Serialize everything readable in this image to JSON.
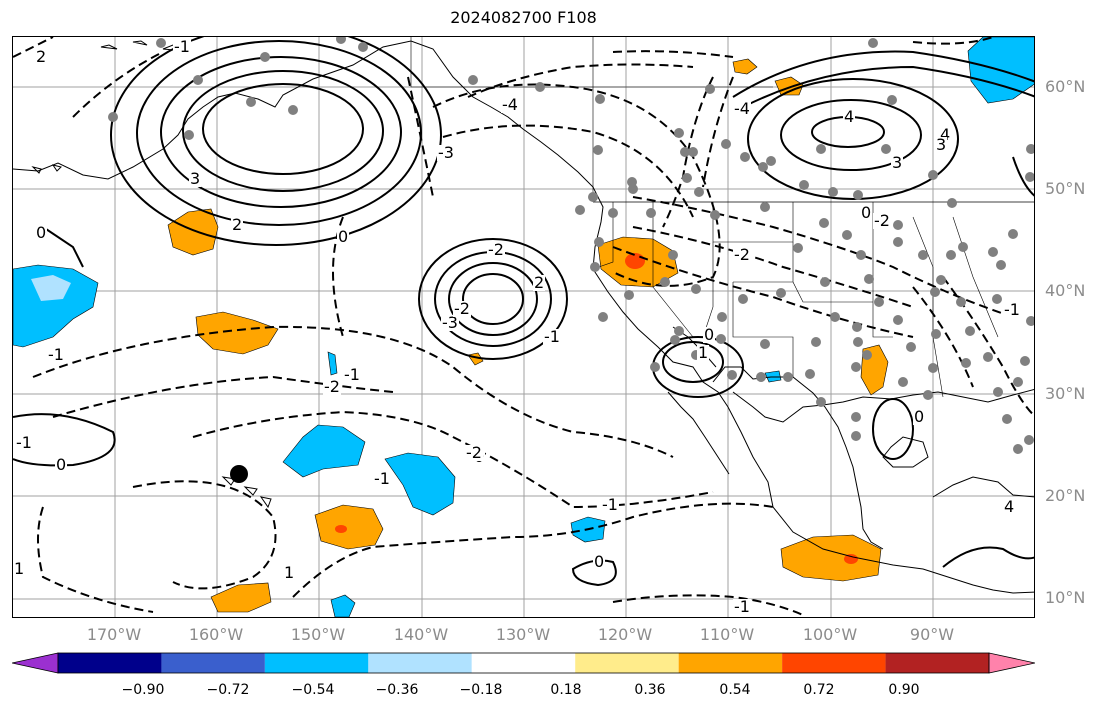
{
  "title": "2024082700 F108",
  "lat_labels": [
    "60°N",
    "50°N",
    "40°N",
    "30°N",
    "20°N",
    "10°N"
  ],
  "lon_labels": [
    "170°W",
    "160°W",
    "150°W",
    "140°W",
    "130°W",
    "120°W",
    "110°W",
    "100°W",
    "90°W"
  ],
  "contour_labels": [
    "2",
    "-1",
    "3",
    "2",
    "0",
    "-1",
    "0",
    "-3",
    "-4",
    "-3",
    "-2",
    "2",
    "-4",
    "4",
    "3",
    "-2",
    "-1",
    "-1",
    "-2",
    "-1",
    "0",
    "-1",
    "1",
    "0",
    "1",
    "-1",
    "-2",
    "0",
    "1",
    "0",
    "-2",
    "0",
    "-1",
    "-1",
    "-2",
    "0",
    "4",
    "3",
    "4"
  ],
  "colorbar": {
    "ticks": [
      "−0.90",
      "−0.72",
      "−0.54",
      "−0.36",
      "−0.18",
      "0.18",
      "0.36",
      "0.54",
      "0.72",
      "0.90"
    ],
    "colors": [
      "#9b30d0",
      "#00008b",
      "#3a5fcd",
      "#00bfff",
      "#b0e2ff",
      "#ffffff",
      "#ffec8b",
      "#ffa500",
      "#ff4500",
      "#b22222",
      "#ff82ab"
    ]
  },
  "fill_colors": {
    "light_orange": "#ffa500",
    "red_orange": "#ff4500",
    "blue": "#00bfff",
    "light_blue": "#b0e2ff"
  }
}
